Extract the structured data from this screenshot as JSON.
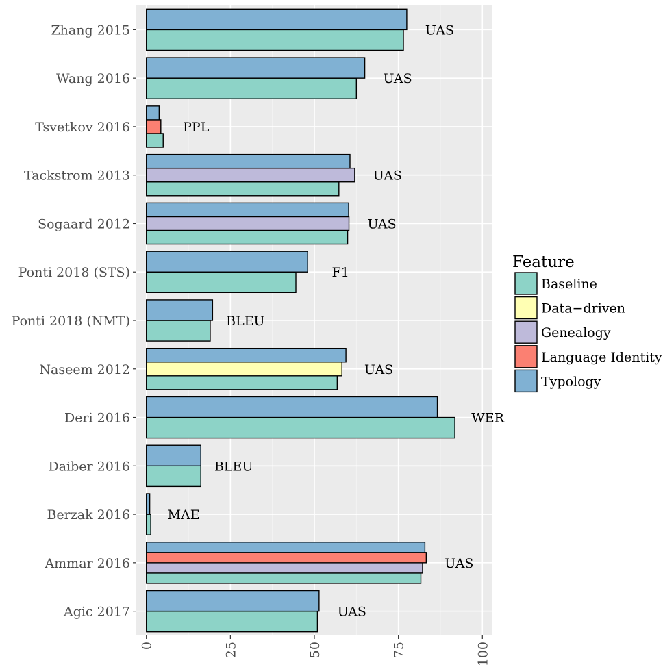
{
  "chart_data": {
    "type": "bar",
    "orientation": "horizontal",
    "xlim": [
      -3,
      103
    ],
    "x_ticks": [
      "0",
      "25",
      "50",
      "75",
      "100"
    ],
    "x_tick_values": [
      0,
      25,
      50,
      75,
      100
    ],
    "grid": true,
    "legend_position": "right",
    "legend_title": "Feature",
    "features": [
      {
        "name": "Baseline",
        "color": "#8dd3c7"
      },
      {
        "name": "Data−driven",
        "color": "#ffffb3"
      },
      {
        "name": "Genealogy",
        "color": "#bebada"
      },
      {
        "name": "Language Identity",
        "color": "#fb8072"
      },
      {
        "name": "Typology",
        "color": "#80b1d3"
      }
    ],
    "groups": [
      {
        "label": "Zhang 2015",
        "metric": "UAS",
        "bars": [
          {
            "feature": "Baseline",
            "value": 76.5
          },
          {
            "feature": "Typology",
            "value": 77.5
          }
        ]
      },
      {
        "label": "Wang 2016",
        "metric": "UAS",
        "bars": [
          {
            "feature": "Baseline",
            "value": 62.5
          },
          {
            "feature": "Typology",
            "value": 65.0
          }
        ]
      },
      {
        "label": "Tsvetkov 2016",
        "metric": "PPL",
        "bars": [
          {
            "feature": "Baseline",
            "value": 5.0
          },
          {
            "feature": "Language Identity",
            "value": 4.3
          },
          {
            "feature": "Typology",
            "value": 3.8
          }
        ]
      },
      {
        "label": "Tackstrom 2013",
        "metric": "UAS",
        "bars": [
          {
            "feature": "Baseline",
            "value": 57.3
          },
          {
            "feature": "Genealogy",
            "value": 62.0
          },
          {
            "feature": "Typology",
            "value": 60.6
          }
        ]
      },
      {
        "label": "Sogaard 2012",
        "metric": "UAS",
        "bars": [
          {
            "feature": "Baseline",
            "value": 59.9
          },
          {
            "feature": "Genealogy",
            "value": 60.3
          },
          {
            "feature": "Typology",
            "value": 60.2
          }
        ]
      },
      {
        "label": "Ponti 2018 (STS)",
        "metric": "F1",
        "bars": [
          {
            "feature": "Baseline",
            "value": 44.5
          },
          {
            "feature": "Typology",
            "value": 48.0
          }
        ]
      },
      {
        "label": "Ponti 2018 (NMT)",
        "metric": "BLEU",
        "bars": [
          {
            "feature": "Baseline",
            "value": 19.0
          },
          {
            "feature": "Typology",
            "value": 19.7
          }
        ]
      },
      {
        "label": "Naseem 2012",
        "metric": "UAS",
        "bars": [
          {
            "feature": "Baseline",
            "value": 56.8
          },
          {
            "feature": "Data−driven",
            "value": 58.2
          },
          {
            "feature": "Typology",
            "value": 59.4
          }
        ]
      },
      {
        "label": "Deri 2016",
        "metric": "WER",
        "bars": [
          {
            "feature": "Baseline",
            "value": 91.8
          },
          {
            "feature": "Typology",
            "value": 86.6
          }
        ]
      },
      {
        "label": "Daiber 2016",
        "metric": "BLEU",
        "bars": [
          {
            "feature": "Baseline",
            "value": 16.2
          },
          {
            "feature": "Typology",
            "value": 16.2
          }
        ]
      },
      {
        "label": "Berzak 2016",
        "metric": "MAE",
        "bars": [
          {
            "feature": "Baseline",
            "value": 1.3
          },
          {
            "feature": "Typology",
            "value": 1.0
          }
        ]
      },
      {
        "label": "Ammar 2016",
        "metric": "UAS",
        "bars": [
          {
            "feature": "Baseline",
            "value": 81.7
          },
          {
            "feature": "Genealogy",
            "value": 82.2
          },
          {
            "feature": "Language Identity",
            "value": 83.3
          },
          {
            "feature": "Typology",
            "value": 82.9
          }
        ]
      },
      {
        "label": "Agic 2017",
        "metric": "UAS",
        "bars": [
          {
            "feature": "Baseline",
            "value": 50.9
          },
          {
            "feature": "Typology",
            "value": 51.4
          }
        ]
      }
    ]
  }
}
